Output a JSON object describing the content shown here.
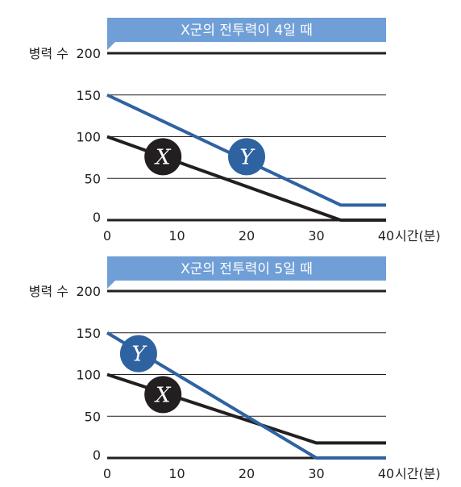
{
  "chart_data": [
    {
      "type": "line",
      "title": "X군의 전투력이 4일 때",
      "ylabel": "병력 수",
      "xlabel": "시간(분)",
      "xlim": [
        0,
        40
      ],
      "ylim": [
        0,
        200
      ],
      "x_ticks": [
        "0",
        "10",
        "20",
        "30",
        "40"
      ],
      "y_ticks": [
        "0",
        "50",
        "100",
        "150",
        "200"
      ],
      "grid": true,
      "series": [
        {
          "name": "X",
          "color": "#231f20",
          "x": [
            0,
            33.5,
            40
          ],
          "y": [
            100,
            0,
            0
          ],
          "label_at": [
            8,
            76
          ]
        },
        {
          "name": "Y",
          "color": "#2f62a1",
          "x": [
            0,
            33.5,
            40
          ],
          "y": [
            150,
            18,
            18
          ],
          "label_at": [
            20,
            76
          ]
        }
      ]
    },
    {
      "type": "line",
      "title": "X군의 전투력이 5일 때",
      "ylabel": "병력 수",
      "xlabel": "시간(분)",
      "xlim": [
        0,
        40
      ],
      "ylim": [
        0,
        200
      ],
      "x_ticks": [
        "0",
        "10",
        "20",
        "30",
        "40"
      ],
      "y_ticks": [
        "0",
        "50",
        "100",
        "150",
        "200"
      ],
      "grid": true,
      "series": [
        {
          "name": "X",
          "color": "#231f20",
          "x": [
            0,
            30,
            40
          ],
          "y": [
            100,
            18,
            18
          ],
          "label_at": [
            8,
            76
          ]
        },
        {
          "name": "Y",
          "color": "#2f62a1",
          "x": [
            0,
            30,
            40
          ],
          "y": [
            150,
            0,
            0
          ],
          "label_at": [
            4.5,
            125
          ]
        }
      ]
    }
  ]
}
